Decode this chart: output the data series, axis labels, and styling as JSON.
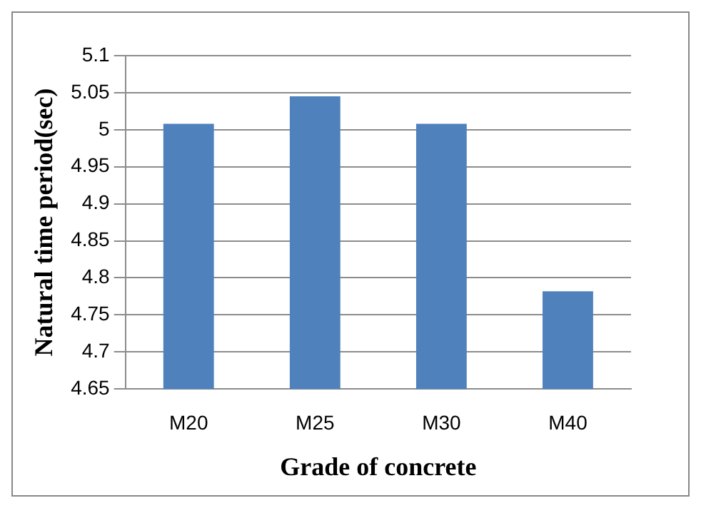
{
  "chart_data": {
    "type": "bar",
    "xlabel": "Grade of concrete",
    "ylabel": "Natural time period(sec)",
    "categories": [
      "M20",
      "M25",
      "M30",
      "M40"
    ],
    "values": [
      5.008,
      5.045,
      5.008,
      4.782
    ],
    "color": "#4f81bd",
    "ylim": [
      4.65,
      5.1
    ],
    "yticks": [
      4.65,
      4.7,
      4.75,
      4.8,
      4.85,
      4.9,
      4.95,
      5,
      5.05,
      5.1
    ],
    "grid": "y",
    "legend": false
  }
}
